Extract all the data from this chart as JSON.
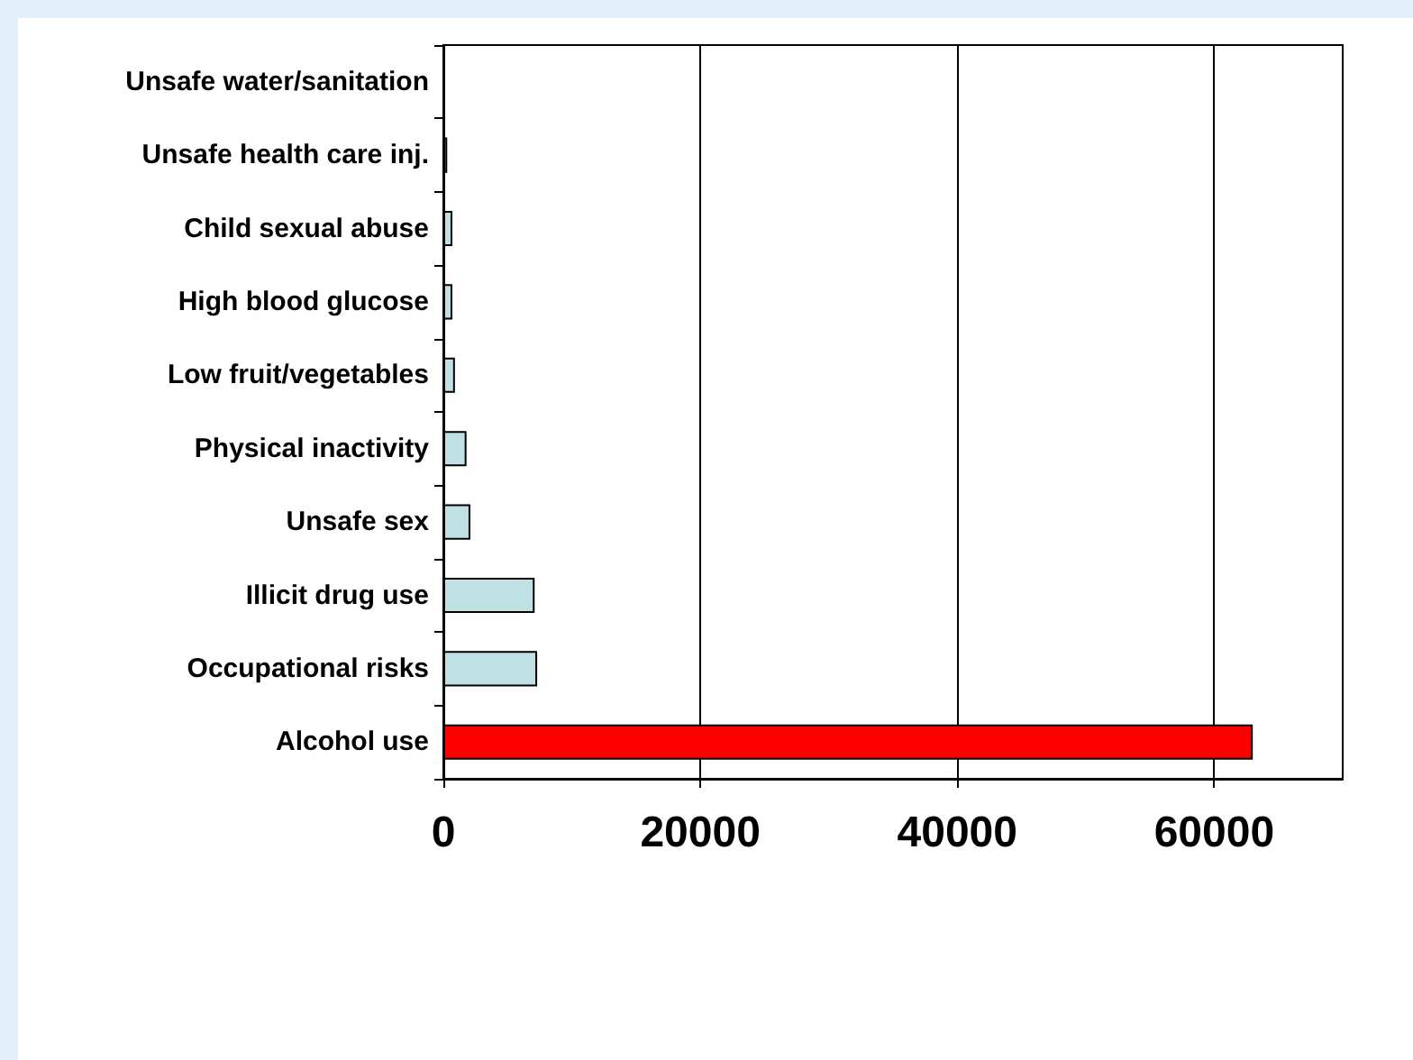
{
  "chart_data": {
    "type": "bar",
    "orientation": "horizontal",
    "categories": [
      "Unsafe water/sanitation",
      "Unsafe health care inj.",
      "Child sexual abuse",
      "High blood glucose",
      "Low fruit/vegetables",
      "Physical inactivity",
      "Unsafe sex",
      "Illicit drug use",
      "Occupational risks",
      "Alcohol use"
    ],
    "values": [
      null,
      300,
      700,
      700,
      900,
      1800,
      2100,
      7100,
      7300,
      63000
    ],
    "colors": [
      "#bfe1e4",
      "#bfe1e4",
      "#bfe1e4",
      "#bfe1e4",
      "#bfe1e4",
      "#bfe1e4",
      "#bfe1e4",
      "#bfe1e4",
      "#bfe1e4",
      "#ff0000"
    ],
    "xlim": [
      0,
      70000
    ],
    "xticks": [
      0,
      20000,
      40000,
      60000
    ],
    "grid": "x"
  }
}
